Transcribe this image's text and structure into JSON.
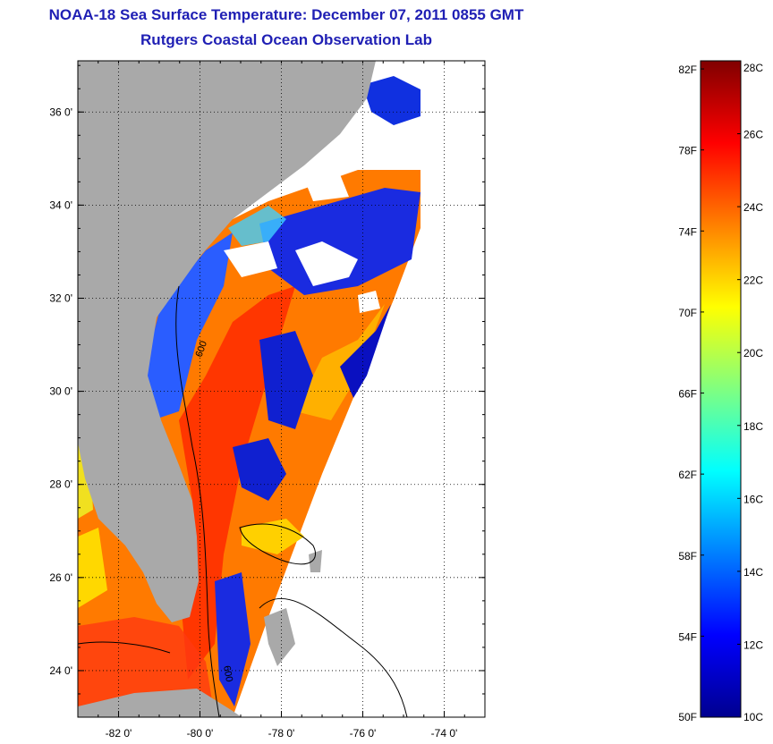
{
  "title": "NOAA-18 Sea Surface Temperature:  December 07, 2011 0855 GMT",
  "subtitle": "Rutgers Coastal Ocean Observation Lab",
  "map": {
    "lon_range": [
      -83,
      -73
    ],
    "lat_range": [
      23,
      37.1
    ],
    "lon_ticks": [
      {
        "v": -82,
        "label": "-82 0'"
      },
      {
        "v": -80,
        "label": "-80 0'"
      },
      {
        "v": -78,
        "label": "-78 0'"
      },
      {
        "v": -76,
        "label": "-76 0'"
      },
      {
        "v": -74,
        "label": "-74 0'"
      }
    ],
    "lat_ticks": [
      {
        "v": 36,
        "label": "36 0'"
      },
      {
        "v": 34,
        "label": "34 0'"
      },
      {
        "v": 32,
        "label": "32 0'"
      },
      {
        "v": 30,
        "label": "30 0'"
      },
      {
        "v": 28,
        "label": "28 0'"
      },
      {
        "v": 26,
        "label": "26 0'"
      },
      {
        "v": 24,
        "label": "24 0'"
      }
    ],
    "land_color": "#a9a9a9",
    "grid": "dotted"
  },
  "colorbar": {
    "range_c": [
      10,
      28
    ],
    "celsius_ticks": [
      {
        "v": 28,
        "label": "28C"
      },
      {
        "v": 26,
        "label": "26C"
      },
      {
        "v": 24,
        "label": "24C"
      },
      {
        "v": 22,
        "label": "22C"
      },
      {
        "v": 20,
        "label": "20C"
      },
      {
        "v": 18,
        "label": "18C"
      },
      {
        "v": 16,
        "label": "16C"
      },
      {
        "v": 14,
        "label": "14C"
      },
      {
        "v": 12,
        "label": "12C"
      },
      {
        "v": 10,
        "label": "10C"
      }
    ],
    "fahrenheit_ticks": [
      {
        "v": 82,
        "label": "82F"
      },
      {
        "v": 78,
        "label": "78F"
      },
      {
        "v": 74,
        "label": "74F"
      },
      {
        "v": 70,
        "label": "70F"
      },
      {
        "v": 66,
        "label": "66F"
      },
      {
        "v": 62,
        "label": "62F"
      },
      {
        "v": 58,
        "label": "58F"
      },
      {
        "v": 54,
        "label": "54F"
      },
      {
        "v": 50,
        "label": "50F"
      }
    ],
    "colormap": [
      "#00008f",
      "#0000ff",
      "#0080ff",
      "#00ffff",
      "#80ff80",
      "#ffff00",
      "#ff8000",
      "#ff0000",
      "#800000"
    ]
  },
  "contour_labels": [
    "600",
    "600"
  ]
}
